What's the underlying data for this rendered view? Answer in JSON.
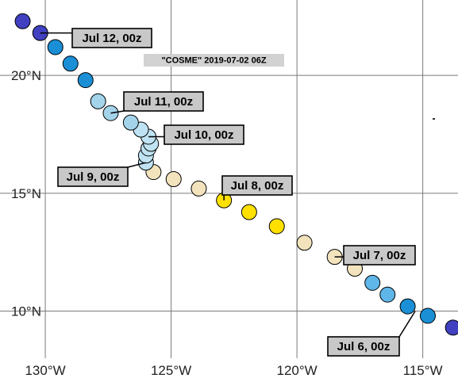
{
  "map": {
    "title": "\"COSME\" 2019-07-02 06Z",
    "projection": "plate-carree",
    "lon_range": [
      -131.8,
      -113.6
    ],
    "lat_range": [
      8.0,
      23.2
    ],
    "x_ticks": [
      {
        "lon": -130,
        "label": "130°W"
      },
      {
        "lon": -125,
        "label": "125°W"
      },
      {
        "lon": -120,
        "label": "120°W"
      },
      {
        "lon": -115,
        "label": "115°W"
      }
    ],
    "y_ticks": [
      {
        "lat": 20,
        "label": "20°N"
      },
      {
        "lat": 15,
        "label": "15°N"
      },
      {
        "lat": 10,
        "label": "10°N"
      }
    ],
    "grid_lons": [
      -130,
      -125,
      -120,
      -115
    ],
    "grid_lats": [
      20,
      15,
      10
    ],
    "grid": true
  },
  "intensity_colors": {
    "low": "#4040c0",
    "depression": "#1a8fd6",
    "depression_light": "#5fb6e8",
    "storm_weak": "#a3d4ea",
    "storm_post": "#bfe3f2",
    "storm": "#f3e3bd",
    "storm_strong": "#ffe000"
  },
  "chart_data": {
    "type": "scatter",
    "description_free": true,
    "x_unit": "degrees longitude",
    "y_unit": "degrees latitude",
    "track": [
      {
        "lon": -113.8,
        "lat": 9.3,
        "color": "low"
      },
      {
        "lon": -114.8,
        "lat": 9.8,
        "color": "depression"
      },
      {
        "lon": -115.6,
        "lat": 10.2,
        "color": "depression"
      },
      {
        "lon": -116.4,
        "lat": 10.7,
        "color": "depression_light"
      },
      {
        "lon": -117.0,
        "lat": 11.2,
        "color": "depression_light"
      },
      {
        "lon": -117.7,
        "lat": 11.8,
        "color": "storm"
      },
      {
        "lon": -118.5,
        "lat": 12.3,
        "color": "storm"
      },
      {
        "lon": -119.7,
        "lat": 12.9,
        "color": "storm"
      },
      {
        "lon": -120.8,
        "lat": 13.6,
        "color": "storm_strong"
      },
      {
        "lon": -121.9,
        "lat": 14.2,
        "color": "storm_strong"
      },
      {
        "lon": -122.9,
        "lat": 14.7,
        "color": "storm_strong"
      },
      {
        "lon": -123.9,
        "lat": 15.2,
        "color": "storm"
      },
      {
        "lon": -124.9,
        "lat": 15.6,
        "color": "storm"
      },
      {
        "lon": -125.7,
        "lat": 15.9,
        "color": "storm"
      },
      {
        "lon": -126.0,
        "lat": 16.3,
        "color": "storm_post"
      },
      {
        "lon": -126.0,
        "lat": 16.6,
        "color": "storm_post"
      },
      {
        "lon": -125.9,
        "lat": 16.9,
        "color": "storm_post"
      },
      {
        "lon": -125.8,
        "lat": 17.1,
        "color": "storm_post"
      },
      {
        "lon": -125.9,
        "lat": 17.4,
        "color": "storm_post"
      },
      {
        "lon": -126.2,
        "lat": 17.7,
        "color": "storm_post"
      },
      {
        "lon": -126.6,
        "lat": 18.0,
        "color": "storm_weak"
      },
      {
        "lon": -127.4,
        "lat": 18.4,
        "color": "storm_weak"
      },
      {
        "lon": -127.9,
        "lat": 18.9,
        "color": "storm_weak"
      },
      {
        "lon": -128.4,
        "lat": 19.8,
        "color": "depression"
      },
      {
        "lon": -129.0,
        "lat": 20.5,
        "color": "depression"
      },
      {
        "lon": -129.6,
        "lat": 21.2,
        "color": "depression"
      },
      {
        "lon": -130.2,
        "lat": 21.8,
        "color": "low"
      },
      {
        "lon": -130.9,
        "lat": 22.3,
        "color": "low"
      }
    ],
    "annotations": [
      {
        "text": "Jul 6, 00z",
        "lon": -115.3,
        "lat": 10.0
      },
      {
        "text": "Jul 7, 00z",
        "lon": -118.5,
        "lat": 12.3
      },
      {
        "text": "Jul 8, 00z",
        "lon": -122.9,
        "lat": 14.7
      },
      {
        "text": "Jul 9, 00z",
        "lon": -126.0,
        "lat": 16.3
      },
      {
        "text": "Jul 10, 00z",
        "lon": -125.9,
        "lat": 17.4
      },
      {
        "text": "Jul 11, 00z",
        "lon": -127.4,
        "lat": 18.4
      },
      {
        "text": "Jul 12, 00z",
        "lon": -130.2,
        "lat": 21.8
      }
    ]
  }
}
